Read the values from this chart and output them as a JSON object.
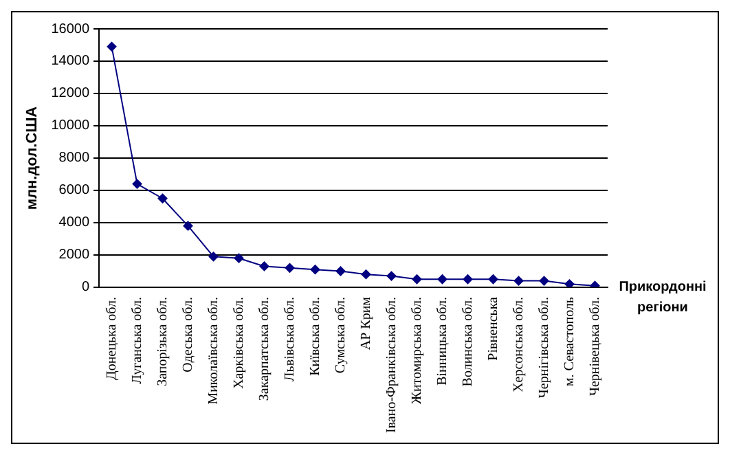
{
  "chart_data": {
    "type": "line",
    "xlabel": "Прикордонні регіони",
    "ylabel": "млн.дол.США",
    "categories": [
      "Донецька обл.",
      "Луганська обл.",
      "Запорізька обл.",
      "Одеська обл.",
      "Миколаївська обл.",
      "Харківська обл.",
      "Закарпатська обл.",
      "Львівська обл.",
      "Київська обл.",
      "Сумська обл.",
      "АР Крим",
      "Івано-Франківська обл.",
      "Житомирська обл.",
      "Вінницька обл.",
      "Волинська обл.",
      "Рівненська",
      "Херсонська обл.",
      "Чернігівська обл.",
      "м. Севастополь",
      "Чернівецька обл."
    ],
    "series": [
      {
        "color": "#000080",
        "values": [
          14900,
          6400,
          5500,
          3800,
          1900,
          1800,
          1300,
          1200,
          1100,
          1000,
          800,
          700,
          500,
          500,
          500,
          500,
          400,
          400,
          200,
          100
        ]
      }
    ],
    "ylim": [
      0,
      16000
    ],
    "yticks": [
      0,
      2000,
      4000,
      6000,
      8000,
      10000,
      12000,
      14000,
      16000
    ],
    "grid": "y",
    "legend": false,
    "marker": "diamond",
    "line_style": "solid"
  }
}
